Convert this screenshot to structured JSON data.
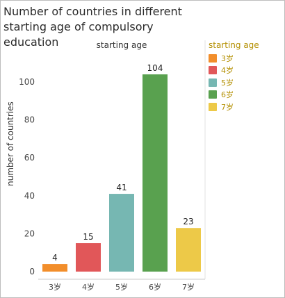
{
  "chart_data": {
    "type": "bar",
    "title": "Number of countries in different starting age of compulsory education",
    "column_header": "starting age",
    "ylabel": "number of countries",
    "xlabel": "",
    "categories": [
      "3岁",
      "4岁",
      "5岁",
      "6岁",
      "7岁"
    ],
    "values": [
      4,
      15,
      41,
      104,
      23
    ],
    "colors": [
      "#f28e2b",
      "#e15759",
      "#76b7b2",
      "#59a14f",
      "#edc948"
    ],
    "ylim": [
      0,
      110
    ],
    "yticks": [
      0,
      20,
      40,
      60,
      80,
      100
    ],
    "grid": false,
    "legend": {
      "title": "starting age",
      "position": "right",
      "items": [
        "3岁",
        "4岁",
        "5岁",
        "6岁",
        "7岁"
      ]
    }
  }
}
